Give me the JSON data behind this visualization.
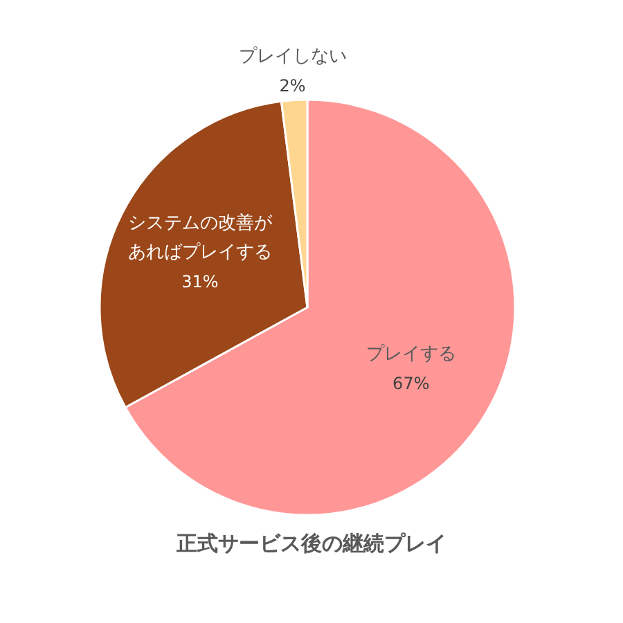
{
  "chart_data": {
    "type": "pie",
    "title": "正式サービス後の継続プレイ",
    "categories": [
      "プレイする",
      "システムの改善があればプレイする",
      "プレイしない"
    ],
    "values": [
      67,
      31,
      2
    ],
    "colors": [
      "#ff9797",
      "#9b4719",
      "#ffd690"
    ],
    "value_labels": [
      "67%",
      "31%",
      "2%"
    ]
  }
}
